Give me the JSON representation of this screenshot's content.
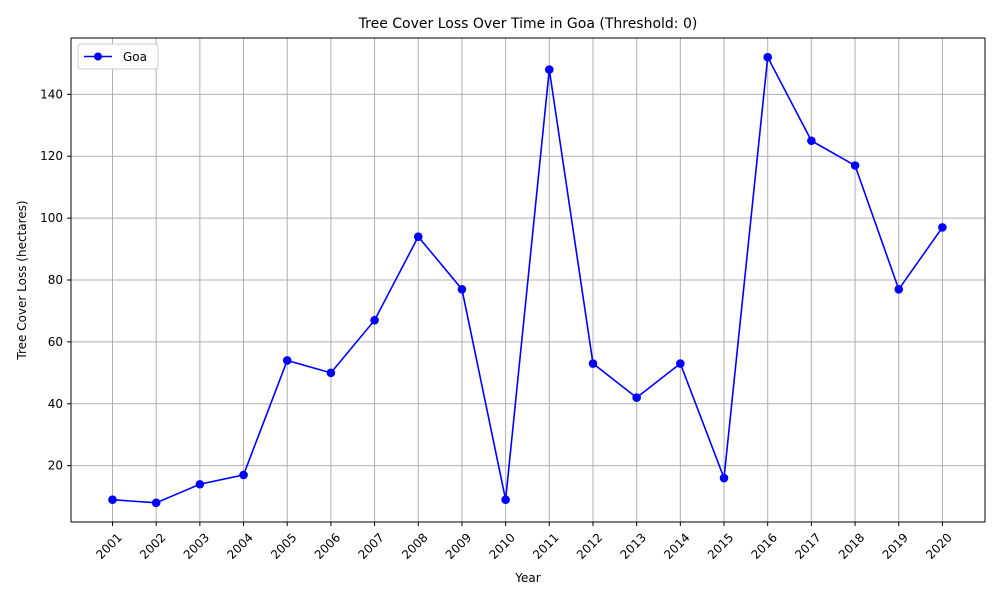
{
  "chart_data": {
    "type": "line",
    "title": "Tree Cover Loss Over Time in Goa (Threshold: 0)",
    "xlabel": "Year",
    "ylabel": "Tree Cover Loss (hectares)",
    "categories": [
      "2001",
      "2002",
      "2003",
      "2004",
      "2005",
      "2006",
      "2007",
      "2008",
      "2009",
      "2010",
      "2011",
      "2012",
      "2013",
      "2014",
      "2015",
      "2016",
      "2017",
      "2018",
      "2019",
      "2020"
    ],
    "series": [
      {
        "name": "Goa",
        "color": "#0000ff",
        "marker": "circle",
        "values": [
          9,
          8,
          14,
          17,
          54,
          50,
          67,
          94,
          77,
          9,
          148,
          53,
          42,
          53,
          16,
          152,
          125,
          117,
          77,
          97
        ]
      }
    ],
    "ylim": [
      1.8,
      158.2
    ],
    "yticks": [
      20,
      40,
      60,
      80,
      100,
      120,
      140
    ],
    "grid": true,
    "legend_position": "top-left"
  }
}
